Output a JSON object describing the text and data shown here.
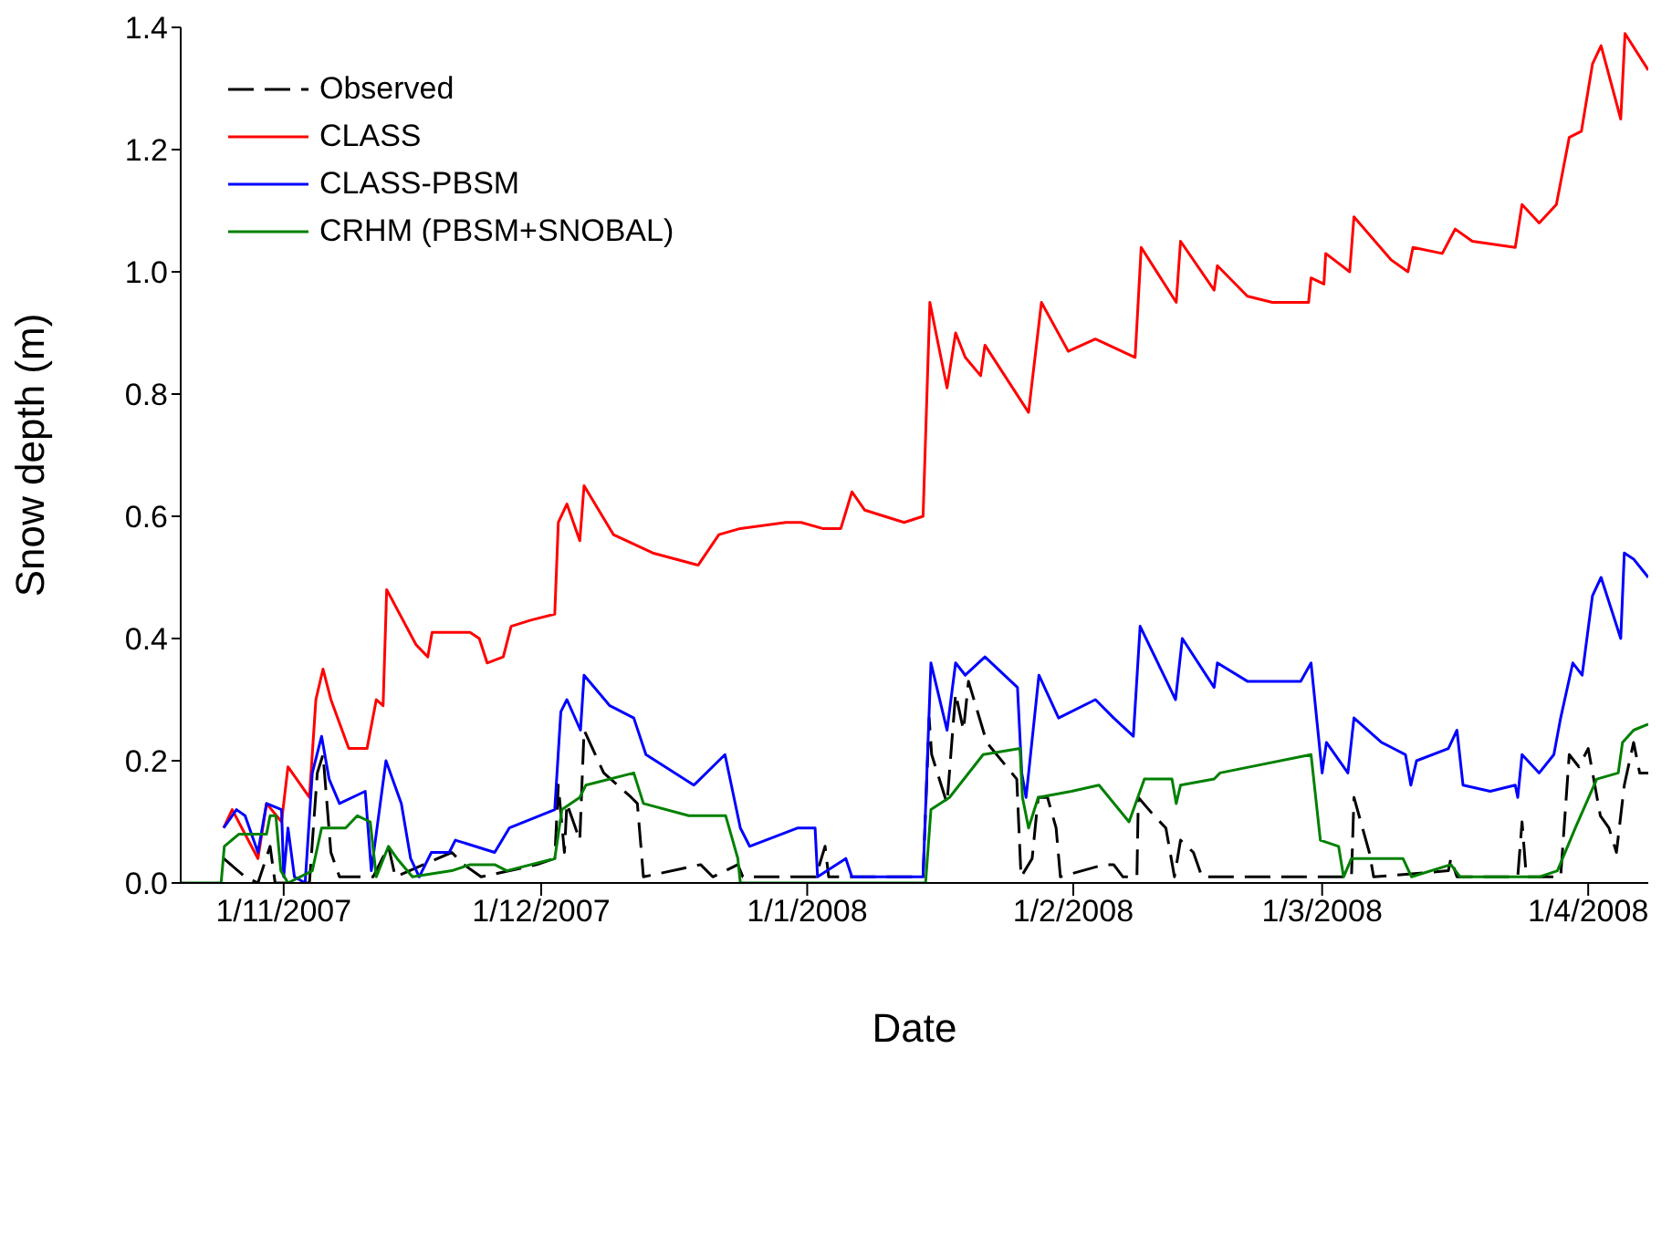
{
  "chart_data": {
    "type": "line",
    "xlabel": "Date",
    "ylabel": "Snow depth (m)",
    "xlim": [
      "2007-10-20",
      "2008-04-08"
    ],
    "xticks": [
      {
        "value": "2007-11-01",
        "label": "1/11/2007"
      },
      {
        "value": "2007-12-01",
        "label": "1/12/2007"
      },
      {
        "value": "2008-01-01",
        "label": "1/1/2008"
      },
      {
        "value": "2008-02-01",
        "label": "1/2/2008"
      },
      {
        "value": "2008-03-01",
        "label": "1/3/2008"
      },
      {
        "value": "2008-04-01",
        "label": "1/4/2008"
      }
    ],
    "ylim": [
      0,
      1.4
    ],
    "yticks": [
      {
        "value": 0,
        "label": "0.0"
      },
      {
        "value": 0.2,
        "label": "0.2"
      },
      {
        "value": 0.4,
        "label": "0.4"
      },
      {
        "value": 0.6,
        "label": "0.6"
      },
      {
        "value": 0.8,
        "label": "0.8"
      },
      {
        "value": 1,
        "label": "1.0"
      },
      {
        "value": 1.2,
        "label": "1.2"
      },
      {
        "value": 1.4,
        "label": "1.4"
      }
    ],
    "legend": "top left",
    "marker": "none",
    "series": [
      {
        "name": "Observed",
        "color": "#000000",
        "line_style": "dashed",
        "x": [
          "2007-10-25T00:00",
          "2007-10-27T12:00",
          "2007-10-29T00:00",
          "2007-10-30T10:00",
          "2007-10-31T00:00",
          "2007-11-04T00:00",
          "2007-11-04T22:00",
          "2007-11-05T14:00",
          "2007-11-06T12:00",
          "2007-11-07T12:00",
          "2007-11-11T10:00",
          "2007-11-13T05:00",
          "2007-11-14T00:00",
          "2007-11-20T14:00",
          "2007-11-22T00:00",
          "2007-11-24T00:00",
          "2007-11-30T12:00",
          "2007-12-02T14:00",
          "2007-12-03T00:00",
          "2007-12-03T17:00",
          "2007-12-04T00:00",
          "2007-12-05T12:00",
          "2007-12-06T00:00",
          "2007-12-08T07:00",
          "2007-12-11T12:00",
          "2007-12-12T05:00",
          "2007-12-12T22:00",
          "2007-12-19T14:00",
          "2007-12-21T00:00",
          "2007-12-23T22:00",
          "2007-12-24T12:00",
          "2008-01-02T00:00",
          "2008-01-03T02:00",
          "2008-01-03T12:00",
          "2008-01-14T12:00",
          "2008-01-15T05:00",
          "2008-01-15T12:00",
          "2008-01-17T07:00",
          "2008-01-18T07:00",
          "2008-01-19T05:00",
          "2008-01-19T19:00",
          "2008-01-21T22:00",
          "2008-01-25T10:00",
          "2008-01-25T22:00",
          "2008-01-27T05:00",
          "2008-01-27T22:00",
          "2008-01-29T00:00",
          "2008-01-30T00:00",
          "2008-01-30T12:00",
          "2008-02-04T14:00",
          "2008-02-05T17:00",
          "2008-02-06T19:00",
          "2008-02-08T10:00",
          "2008-02-08T14:00",
          "2008-02-10T10:00",
          "2008-02-11T19:00",
          "2008-02-12T19:00",
          "2008-02-13T12:00",
          "2008-02-15T00:00",
          "2008-02-16T00:00",
          "2008-02-28T10:00",
          "2008-03-04T10:00",
          "2008-03-04T17:00",
          "2008-03-06T12:00",
          "2008-03-07T00:00",
          "2008-03-15T17:00",
          "2008-03-16T00:00",
          "2008-03-16T17:00",
          "2008-03-23T19:00",
          "2008-03-24T07:00",
          "2008-03-24T19:00",
          "2008-03-28T19:00",
          "2008-03-29T19:00",
          "2008-03-30T22:00",
          "2008-04-01T00:00",
          "2008-04-02T10:00",
          "2008-04-03T10:00",
          "2008-04-04T07:00",
          "2008-04-05T05:00",
          "2008-04-06T07:00",
          "2008-04-07T00:00",
          "2008-04-08T00:00"
        ],
        "values": [
          0.04,
          0.01,
          0.0,
          0.06,
          0.0,
          0.0,
          0.18,
          0.21,
          0.05,
          0.01,
          0.01,
          0.06,
          0.01,
          0.05,
          0.03,
          0.01,
          0.03,
          0.04,
          0.16,
          0.05,
          0.13,
          0.07,
          0.25,
          0.18,
          0.14,
          0.13,
          0.01,
          0.03,
          0.01,
          0.03,
          0.01,
          0.01,
          0.06,
          0.01,
          0.01,
          0.27,
          0.21,
          0.13,
          0.31,
          0.25,
          0.33,
          0.23,
          0.17,
          0.01,
          0.04,
          0.14,
          0.14,
          0.09,
          0.01,
          0.03,
          0.03,
          0.01,
          0.01,
          0.14,
          0.11,
          0.09,
          0.01,
          0.07,
          0.05,
          0.01,
          0.01,
          0.01,
          0.14,
          0.05,
          0.01,
          0.02,
          0.04,
          0.01,
          0.01,
          0.1,
          0.01,
          0.01,
          0.21,
          0.19,
          0.22,
          0.11,
          0.09,
          0.05,
          0.16,
          0.23,
          0.18,
          0.18
        ]
      },
      {
        "name": "CLASS",
        "color": "#ff0000",
        "line_style": "solid",
        "x": [
          "2007-10-25T00:00",
          "2007-10-26T00:00",
          "2007-10-29T00:00",
          "2007-10-30T00:00",
          "2007-10-31T18:00",
          "2007-11-01T12:00",
          "2007-11-04T00:00",
          "2007-11-04T18:00",
          "2007-11-05T14:00",
          "2007-11-06T12:00",
          "2007-11-08T14:00",
          "2007-11-10T17:00",
          "2007-11-11T19:00",
          "2007-11-12T14:00",
          "2007-11-13T00:00",
          "2007-11-16T10:00",
          "2007-11-17T19:00",
          "2007-11-18T07:00",
          "2007-11-21T07:00",
          "2007-11-22T17:00",
          "2007-11-23T19:00",
          "2007-11-24T17:00",
          "2007-11-26T14:00",
          "2007-11-27T12:00",
          "2007-11-29T19:00",
          "2007-12-02T14:00",
          "2007-12-03T00:00",
          "2007-12-04T00:00",
          "2007-12-05T12:00",
          "2007-12-06T00:00",
          "2007-12-09T10:00",
          "2007-12-14T00:00",
          "2007-12-19T07:00",
          "2007-12-21T17:00",
          "2007-12-24T05:00",
          "2007-12-29T12:00",
          "2007-12-31T07:00",
          "2008-01-02T19:00",
          "2008-01-04T22:00",
          "2008-01-06T05:00",
          "2008-01-07T17:00",
          "2008-01-12T07:00",
          "2008-01-14T12:00",
          "2008-01-15T07:00",
          "2008-01-17T07:00",
          "2008-01-18T07:00",
          "2008-01-19T10:00",
          "2008-01-21T05:00",
          "2008-01-21T17:00",
          "2008-01-26T19:00",
          "2008-01-28T07:00",
          "2008-01-31T10:00",
          "2008-02-03T14:00",
          "2008-02-08T05:00",
          "2008-02-08T22:00",
          "2008-02-13T00:00",
          "2008-02-13T12:00",
          "2008-02-17T10:00",
          "2008-02-17T19:00",
          "2008-02-21T07:00",
          "2008-02-24T05:00",
          "2008-02-28T10:00",
          "2008-02-28T17:00",
          "2008-03-01T05:00",
          "2008-03-01T10:00",
          "2008-03-04T05:00",
          "2008-03-04T17:00",
          "2008-03-09T00:00",
          "2008-03-11T00:00",
          "2008-03-11T14:00",
          "2008-03-15T00:00",
          "2008-03-16T12:00",
          "2008-03-18T12:00",
          "2008-03-23T12:00",
          "2008-03-24T07:00",
          "2008-03-26T07:00",
          "2008-03-28T07:00",
          "2008-03-29T19:00",
          "2008-03-31T05:00",
          "2008-04-01T12:00",
          "2008-04-02T12:00",
          "2008-04-04T19:00",
          "2008-04-05T07:00",
          "2008-04-08T00:00"
        ],
        "values": [
          0.09,
          0.12,
          0.04,
          0.13,
          0.1,
          0.19,
          0.14,
          0.3,
          0.35,
          0.3,
          0.22,
          0.22,
          0.3,
          0.29,
          0.48,
          0.39,
          0.37,
          0.41,
          0.41,
          0.41,
          0.4,
          0.36,
          0.37,
          0.42,
          0.43,
          0.44,
          0.59,
          0.62,
          0.56,
          0.65,
          0.57,
          0.54,
          0.52,
          0.57,
          0.58,
          0.59,
          0.59,
          0.58,
          0.58,
          0.64,
          0.61,
          0.59,
          0.6,
          0.95,
          0.81,
          0.9,
          0.86,
          0.83,
          0.88,
          0.77,
          0.95,
          0.87,
          0.89,
          0.86,
          1.04,
          0.95,
          1.05,
          0.97,
          1.01,
          0.96,
          0.95,
          0.95,
          0.99,
          0.98,
          1.03,
          1.0,
          1.09,
          1.02,
          1.0,
          1.04,
          1.03,
          1.07,
          1.05,
          1.04,
          1.11,
          1.08,
          1.11,
          1.22,
          1.23,
          1.34,
          1.37,
          1.25,
          1.39,
          1.33
        ]
      },
      {
        "name": "CLASS-PBSM",
        "color": "#0000ff",
        "line_style": "solid",
        "x": [
          "2007-10-25T00:00",
          "2007-10-26T12:00",
          "2007-10-27T12:00",
          "2007-10-29T00:00",
          "2007-10-30T00:00",
          "2007-10-31T18:00",
          "2007-11-01T00:00",
          "2007-11-01T12:00",
          "2007-11-02T06:00",
          "2007-11-03T12:00",
          "2007-11-04T08:00",
          "2007-11-05T10:00",
          "2007-11-06T07:00",
          "2007-11-07T12:00",
          "2007-11-10T12:00",
          "2007-11-11T05:00",
          "2007-11-12T22:00",
          "2007-11-14T17:00",
          "2007-11-15T19:00",
          "2007-11-16T19:00",
          "2007-11-18T05:00",
          "2007-11-20T07:00",
          "2007-11-21T00:00",
          "2007-11-25T14:00",
          "2007-11-27T07:00",
          "2007-12-02T14:00",
          "2007-12-03T07:00",
          "2007-12-04T00:00",
          "2007-12-05T14:00",
          "2007-12-06T00:00",
          "2007-12-09T00:00",
          "2007-12-11T19:00",
          "2007-12-13T05:00",
          "2007-12-18T19:00",
          "2007-12-22T10:00",
          "2007-12-24T05:00",
          "2007-12-25T07:00",
          "2007-12-30T22:00",
          "2008-01-01T22:00",
          "2008-01-02T05:00",
          "2008-01-05T12:00",
          "2008-01-06T05:00",
          "2008-01-12T12:00",
          "2008-01-14T12:00",
          "2008-01-15T10:00",
          "2008-01-17T07:00",
          "2008-01-18T07:00",
          "2008-01-19T10:00",
          "2008-01-21T17:00",
          "2008-01-25T12:00",
          "2008-01-26T00:00",
          "2008-01-26T12:00",
          "2008-01-28T00:00",
          "2008-01-30T07:00",
          "2008-02-03T14:00",
          "2008-02-05T17:00",
          "2008-02-08T00:00",
          "2008-02-08T19:00",
          "2008-02-12T22:00",
          "2008-02-13T17:00",
          "2008-02-17T10:00",
          "2008-02-17T19:00",
          "2008-02-21T07:00",
          "2008-02-24T05:00",
          "2008-02-27T12:00",
          "2008-02-28T17:00",
          "2008-02-29T12:00",
          "2008-03-01T00:00",
          "2008-03-01T12:00",
          "2008-03-04T00:00",
          "2008-03-04T17:00",
          "2008-03-07T22:00",
          "2008-03-10T17:00",
          "2008-03-11T08:00",
          "2008-03-12T00:00",
          "2008-03-15T17:00",
          "2008-03-16T17:00",
          "2008-03-17T10:00",
          "2008-03-20T14:00",
          "2008-03-23T12:00",
          "2008-03-23T19:00",
          "2008-03-24T07:00",
          "2008-03-26T07:00",
          "2008-03-28T00:00",
          "2008-03-28T19:00",
          "2008-03-30T05:00",
          "2008-03-31T07:00",
          "2008-04-01T12:00",
          "2008-04-02T12:00",
          "2008-04-04T19:00",
          "2008-04-05T05:00",
          "2008-04-06T07:00",
          "2008-04-08T00:00"
        ],
        "values": [
          0.09,
          0.12,
          0.11,
          0.05,
          0.13,
          0.12,
          0.01,
          0.09,
          0.01,
          0.0,
          0.18,
          0.24,
          0.17,
          0.13,
          0.15,
          0.02,
          0.2,
          0.13,
          0.04,
          0.01,
          0.05,
          0.05,
          0.07,
          0.05,
          0.09,
          0.12,
          0.28,
          0.3,
          0.25,
          0.34,
          0.29,
          0.27,
          0.21,
          0.16,
          0.21,
          0.09,
          0.06,
          0.09,
          0.09,
          0.01,
          0.04,
          0.01,
          0.01,
          0.01,
          0.36,
          0.25,
          0.36,
          0.34,
          0.37,
          0.32,
          0.18,
          0.14,
          0.34,
          0.27,
          0.3,
          0.27,
          0.24,
          0.42,
          0.3,
          0.4,
          0.32,
          0.36,
          0.33,
          0.33,
          0.33,
          0.36,
          0.25,
          0.18,
          0.23,
          0.18,
          0.27,
          0.23,
          0.21,
          0.16,
          0.2,
          0.22,
          0.25,
          0.16,
          0.15,
          0.16,
          0.14,
          0.21,
          0.18,
          0.21,
          0.27,
          0.36,
          0.34,
          0.47,
          0.5,
          0.4,
          0.54,
          0.53,
          0.5
        ]
      },
      {
        "name": "CRHM (PBSM+SNOBAL)",
        "color": "#008000",
        "line_style": "solid",
        "x": [
          "2007-10-20T00:00",
          "2007-10-24T17:00",
          "2007-10-25T02:00",
          "2007-10-26T19:00",
          "2007-10-30T00:00",
          "2007-10-30T10:00",
          "2007-10-31T02:00",
          "2007-10-31T16:00",
          "2007-11-01T12:00",
          "2007-11-04T08:00",
          "2007-11-05T10:00",
          "2007-11-08T05:00",
          "2007-11-09T14:00",
          "2007-11-11T02:00",
          "2007-11-11T19:00",
          "2007-11-13T05:00",
          "2007-11-14T05:00",
          "2007-11-16T00:00",
          "2007-11-20T14:00",
          "2007-11-22T17:00",
          "2007-11-25T14:00",
          "2007-11-27T00:00",
          "2007-12-02T14:00",
          "2007-12-03T10:00",
          "2007-12-05T12:00",
          "2007-12-06T05:00",
          "2007-12-11T19:00",
          "2007-12-12T22:00",
          "2007-12-18T05:00",
          "2007-12-22T12:00",
          "2007-12-23T22:00",
          "2007-12-24T05:00",
          "2008-01-14T19:00",
          "2008-01-15T10:00",
          "2008-01-17T14:00",
          "2008-01-21T12:00",
          "2008-01-25T19:00",
          "2008-01-26T02:00",
          "2008-01-26T19:00",
          "2008-01-27T22:00",
          "2008-01-31T19:00",
          "2008-02-04T00:00",
          "2008-02-07T12:00",
          "2008-02-09T07:00",
          "2008-02-12T12:00",
          "2008-02-13T00:00",
          "2008-02-13T12:00",
          "2008-02-17T10:00",
          "2008-02-18T02:00",
          "2008-02-28T17:00",
          "2008-02-29T19:00",
          "2008-03-02T22:00",
          "2008-03-03T12:00",
          "2008-03-04T10:00",
          "2008-03-10T10:00",
          "2008-03-11T10:00",
          "2008-03-16T00:00",
          "2008-03-17T02:00",
          "2008-03-26T07:00",
          "2008-03-28T10:00",
          "2008-03-30T12:00",
          "2008-04-02T00:00",
          "2008-04-04T12:00",
          "2008-04-05T00:00",
          "2008-04-06T07:00",
          "2008-04-08T00:00"
        ],
        "values": [
          0.0,
          0.0,
          0.06,
          0.08,
          0.08,
          0.11,
          0.11,
          0.02,
          0.0,
          0.02,
          0.09,
          0.09,
          0.11,
          0.1,
          0.01,
          0.06,
          0.04,
          0.01,
          0.02,
          0.03,
          0.03,
          0.02,
          0.04,
          0.12,
          0.14,
          0.16,
          0.18,
          0.13,
          0.11,
          0.11,
          0.04,
          0.0,
          0.0,
          0.12,
          0.14,
          0.21,
          0.22,
          0.14,
          0.09,
          0.14,
          0.15,
          0.16,
          0.1,
          0.17,
          0.17,
          0.13,
          0.16,
          0.17,
          0.18,
          0.21,
          0.07,
          0.06,
          0.01,
          0.04,
          0.04,
          0.01,
          0.03,
          0.01,
          0.01,
          0.02,
          0.09,
          0.17,
          0.18,
          0.23,
          0.25,
          0.26
        ]
      }
    ]
  }
}
